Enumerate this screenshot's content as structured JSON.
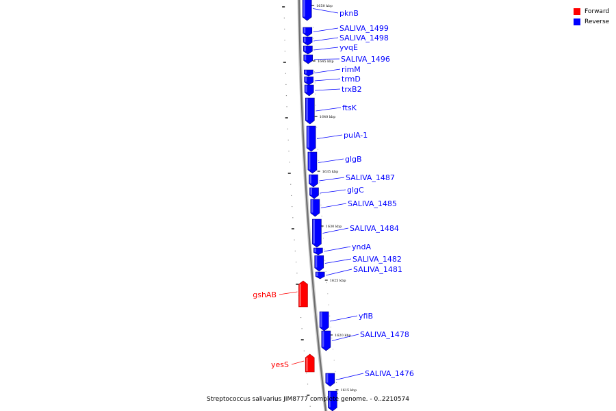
{
  "legend": {
    "forward_label": "Forward",
    "reverse_label": "Reverse",
    "forward_color": "#ff0000",
    "reverse_color": "#0000ff"
  },
  "caption": "Streptococcus salivarius JIM8777 complete genome. - 0..2210574",
  "kbp_marks": [
    "1650 kbp",
    "1645 kbp",
    "1640 kbp",
    "1635 kbp",
    "1630 kbp",
    "1625 kbp",
    "1620 kbp",
    "1615 kbp"
  ],
  "genes": [
    {
      "name": "pknB",
      "strand": "reverse"
    },
    {
      "name": "SALIVA_1499",
      "strand": "reverse"
    },
    {
      "name": "SALIVA_1498",
      "strand": "reverse"
    },
    {
      "name": "yvqE",
      "strand": "reverse"
    },
    {
      "name": "SALIVA_1496",
      "strand": "reverse"
    },
    {
      "name": "rimM",
      "strand": "reverse"
    },
    {
      "name": "trmD",
      "strand": "reverse"
    },
    {
      "name": "trxB2",
      "strand": "reverse"
    },
    {
      "name": "ftsK",
      "strand": "reverse"
    },
    {
      "name": "pulA-1",
      "strand": "reverse"
    },
    {
      "name": "glgB",
      "strand": "reverse"
    },
    {
      "name": "SALIVA_1487",
      "strand": "reverse"
    },
    {
      "name": "glgC",
      "strand": "reverse"
    },
    {
      "name": "SALIVA_1485",
      "strand": "reverse"
    },
    {
      "name": "SALIVA_1484",
      "strand": "reverse"
    },
    {
      "name": "yndA",
      "strand": "reverse"
    },
    {
      "name": "SALIVA_1482",
      "strand": "reverse"
    },
    {
      "name": "SALIVA_1481",
      "strand": "reverse"
    },
    {
      "name": "gshAB",
      "strand": "forward"
    },
    {
      "name": "yfiB",
      "strand": "reverse"
    },
    {
      "name": "SALIVA_1478",
      "strand": "reverse"
    },
    {
      "name": "yesS",
      "strand": "forward"
    },
    {
      "name": "SALIVA_1476",
      "strand": "reverse"
    },
    {
      "name": "",
      "strand": "reverse"
    }
  ]
}
